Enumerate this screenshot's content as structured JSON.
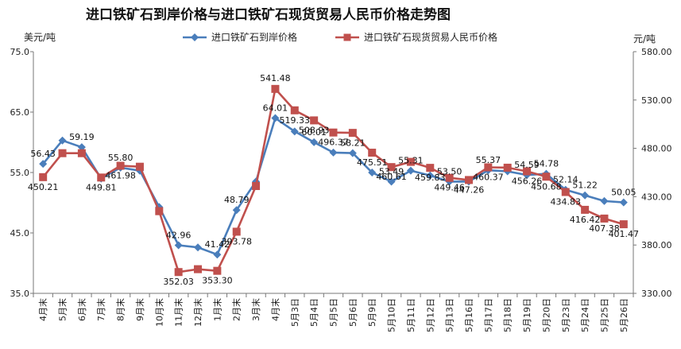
{
  "chart_data": {
    "type": "line",
    "title": "进口铁矿石到岸价格与进口铁矿石现货贸易人民币价格走势图",
    "ylabel_left": "美元/吨",
    "ylabel_right": "元/吨",
    "ylim_left": [
      35.0,
      75.0
    ],
    "yticks_left": [
      "35.0",
      "45.0",
      "55.0",
      "65.0",
      "75.0"
    ],
    "ylim_right": [
      330.0,
      580.0
    ],
    "yticks_right": [
      "330.00",
      "380.00",
      "430.00",
      "480.00",
      "530.00",
      "580.00"
    ],
    "legend_position": "top",
    "grid": false,
    "categories": [
      "4月末",
      "5月末",
      "6月末",
      "7月末",
      "8月末",
      "9月末",
      "10月末",
      "11月末",
      "12月末",
      "1月末",
      "2月末",
      "3月末",
      "4月末",
      "5月3日",
      "5月4日",
      "5月5日",
      "5月6日",
      "5月9日",
      "5月10日",
      "5月11日",
      "5月12日",
      "5月13日",
      "5月16日",
      "5月17日",
      "5月18日",
      "5月19日",
      "5月20日",
      "5月23日",
      "5月24日",
      "5月25日",
      "5月26日"
    ],
    "series": [
      {
        "name": "进口铁矿石到岸价格",
        "axis": "left",
        "color": "#4a7ebb",
        "marker": "diamond",
        "values": [
          56.43,
          60.3,
          59.19,
          54.0,
          55.8,
          55.3,
          49.3,
          42.96,
          42.6,
          41.42,
          48.79,
          53.5,
          64.01,
          61.8,
          60.01,
          58.3,
          58.21,
          55.0,
          53.49,
          55.31,
          54.5,
          53.5,
          53.5,
          55.37,
          55.2,
          54.59,
          54.78,
          52.14,
          51.22,
          50.28,
          50.05
        ]
      },
      {
        "name": "进口铁矿石现货贸易人民币价格",
        "axis": "right",
        "color": "#c0504d",
        "marker": "square",
        "values": [
          450.21,
          475.0,
          475.0,
          449.81,
          461.98,
          461.0,
          415.0,
          352.03,
          355.0,
          353.3,
          393.78,
          441.0,
          541.48,
          519.33,
          508.93,
          496.37,
          496.0,
          475.51,
          460.61,
          466.0,
          459.83,
          449.46,
          447.26,
          460.37,
          460.0,
          456.26,
          450.68,
          434.83,
          416.42,
          407.38,
          401.47
        ]
      }
    ],
    "data_labels": [
      {
        "series": 0,
        "index": 0,
        "text": "56.43"
      },
      {
        "series": 0,
        "index": 2,
        "text": "59.19"
      },
      {
        "series": 0,
        "index": 4,
        "text": "55.80"
      },
      {
        "series": 0,
        "index": 7,
        "text": "42.96"
      },
      {
        "series": 0,
        "index": 9,
        "text": "41.42"
      },
      {
        "series": 0,
        "index": 10,
        "text": "48.79"
      },
      {
        "series": 0,
        "index": 12,
        "text": "64.01"
      },
      {
        "series": 0,
        "index": 14,
        "text": "60.01"
      },
      {
        "series": 0,
        "index": 16,
        "text": "58.21"
      },
      {
        "series": 0,
        "index": 18,
        "text": "53.49"
      },
      {
        "series": 0,
        "index": 19,
        "text": "55.31"
      },
      {
        "series": 0,
        "index": 21,
        "text": "53.50"
      },
      {
        "series": 0,
        "index": 23,
        "text": "55.37"
      },
      {
        "series": 0,
        "index": 25,
        "text": "54.59"
      },
      {
        "series": 0,
        "index": 26,
        "text": "54.78"
      },
      {
        "series": 0,
        "index": 27,
        "text": "52.14"
      },
      {
        "series": 0,
        "index": 28,
        "text": "51.22"
      },
      {
        "series": 0,
        "index": 30,
        "text": "50.05"
      },
      {
        "series": 1,
        "index": 0,
        "text": "450.21"
      },
      {
        "series": 1,
        "index": 3,
        "text": "449.81"
      },
      {
        "series": 1,
        "index": 4,
        "text": "461.98"
      },
      {
        "series": 1,
        "index": 7,
        "text": "352.03"
      },
      {
        "series": 1,
        "index": 9,
        "text": "353.30"
      },
      {
        "series": 1,
        "index": 10,
        "text": "393.78"
      },
      {
        "series": 1,
        "index": 12,
        "text": "541.48"
      },
      {
        "series": 1,
        "index": 13,
        "text": "519.33"
      },
      {
        "series": 1,
        "index": 14,
        "text": "508.93"
      },
      {
        "series": 1,
        "index": 15,
        "text": "496.37"
      },
      {
        "series": 1,
        "index": 17,
        "text": "475.51"
      },
      {
        "series": 1,
        "index": 18,
        "text": "460.61"
      },
      {
        "series": 1,
        "index": 20,
        "text": "459.83"
      },
      {
        "series": 1,
        "index": 21,
        "text": "449.46"
      },
      {
        "series": 1,
        "index": 22,
        "text": "447.26"
      },
      {
        "series": 1,
        "index": 23,
        "text": "460.37"
      },
      {
        "series": 1,
        "index": 25,
        "text": "456.26"
      },
      {
        "series": 1,
        "index": 26,
        "text": "450.68"
      },
      {
        "series": 1,
        "index": 27,
        "text": "434.83"
      },
      {
        "series": 1,
        "index": 28,
        "text": "416.42"
      },
      {
        "series": 1,
        "index": 29,
        "text": "407.38"
      },
      {
        "series": 1,
        "index": 30,
        "text": "401.47"
      }
    ]
  }
}
